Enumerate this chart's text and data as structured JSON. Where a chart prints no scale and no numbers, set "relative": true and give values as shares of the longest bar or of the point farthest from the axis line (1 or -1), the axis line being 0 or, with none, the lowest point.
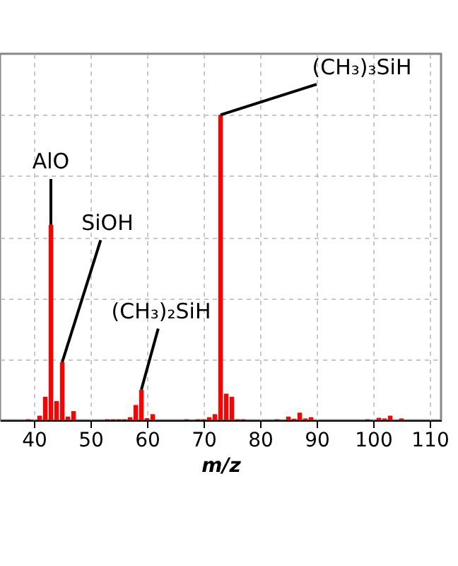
{
  "chart_data": {
    "type": "bar",
    "relative": true,
    "xlabel": "m/z",
    "grid": true,
    "x": [
      39,
      41,
      42,
      43,
      44,
      45,
      46,
      47,
      53,
      54,
      55,
      56,
      57,
      58,
      59,
      60,
      61,
      67,
      69,
      70,
      71,
      72,
      73,
      74,
      75,
      76,
      77,
      83,
      85,
      86,
      87,
      88,
      89,
      99,
      101,
      102,
      103,
      105
    ],
    "values": [
      0.003,
      0.015,
      0.077,
      0.64,
      0.063,
      0.19,
      0.012,
      0.03,
      0.003,
      0.003,
      0.003,
      0.003,
      0.01,
      0.05,
      0.1,
      0.007,
      0.02,
      0.003,
      0.003,
      0.003,
      0.01,
      0.02,
      1,
      0.087,
      0.077,
      0.003,
      0.003,
      0.003,
      0.012,
      0.005,
      0.025,
      0.006,
      0.01,
      0.003,
      0.008,
      0.006,
      0.015,
      0.006
    ],
    "color": "#ff0000",
    "xlim": [
      34,
      112
    ],
    "xticks": [
      40,
      50,
      60,
      70,
      80,
      90,
      100,
      110
    ],
    "annotations": [
      {
        "text": "AlO",
        "x": 43,
        "y": 0.64
      },
      {
        "text": "SiOH",
        "x": 45,
        "y": 0.19
      },
      {
        "text": "(CH₃)₂SiH",
        "x": 59,
        "y": 0.1
      },
      {
        "text": "(CH₃)₃SiH",
        "x": 73,
        "y": 1
      }
    ]
  }
}
